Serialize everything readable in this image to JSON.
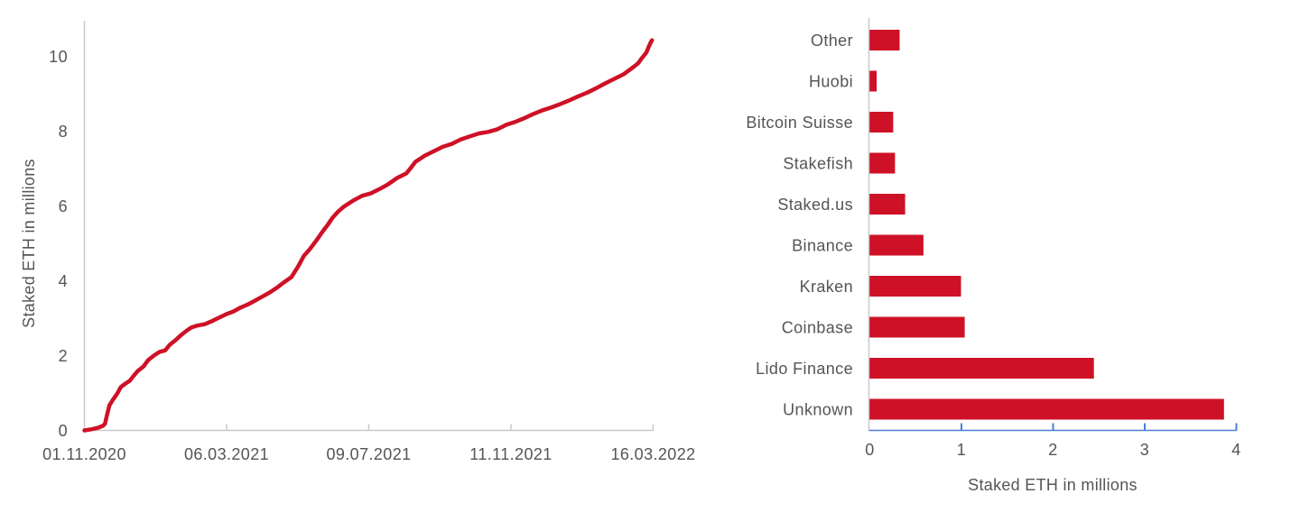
{
  "page": {
    "background": "#ffffff"
  },
  "colors": {
    "series_red": "#ce1126",
    "axis_gray": "#c9c9c9",
    "axis_blue": "#4a7ed9",
    "text_gray": "#555555"
  },
  "chart_data": [
    {
      "type": "line",
      "name": "staked-eth-over-time",
      "ylabel": "Staked ETH in millions",
      "xlabel": "",
      "x_tick_labels": [
        "01.11.2020",
        "06.03.2021",
        "09.07.2021",
        "11.11.2021",
        "16.03.2022"
      ],
      "x_tick_days": [
        0,
        125,
        250,
        375,
        500
      ],
      "x_range_days": [
        0,
        500
      ],
      "y_ticks": [
        0,
        2,
        4,
        6,
        8,
        10
      ],
      "ylim": [
        0,
        11
      ],
      "grid": false,
      "legend": "none",
      "line_color": "#ce1126",
      "series": [
        {
          "name": "Staked ETH (millions)",
          "points_format": "[day_offset_from_01.11.2020, staked_eth_millions]",
          "points": [
            [
              0,
              0
            ],
            [
              6,
              0.03
            ],
            [
              12,
              0.07
            ],
            [
              16,
              0.12
            ],
            [
              18,
              0.17
            ],
            [
              20,
              0.43
            ],
            [
              22,
              0.67
            ],
            [
              25,
              0.82
            ],
            [
              29,
              0.99
            ],
            [
              32,
              1.16
            ],
            [
              36,
              1.25
            ],
            [
              40,
              1.33
            ],
            [
              43,
              1.45
            ],
            [
              47,
              1.59
            ],
            [
              52,
              1.71
            ],
            [
              56,
              1.88
            ],
            [
              61,
              2.0
            ],
            [
              66,
              2.1
            ],
            [
              71,
              2.14
            ],
            [
              75,
              2.29
            ],
            [
              80,
              2.41
            ],
            [
              85,
              2.55
            ],
            [
              90,
              2.67
            ],
            [
              94,
              2.75
            ],
            [
              99,
              2.8
            ],
            [
              106,
              2.84
            ],
            [
              112,
              2.92
            ],
            [
              118,
              3.01
            ],
            [
              125,
              3.11
            ],
            [
              131,
              3.18
            ],
            [
              137,
              3.28
            ],
            [
              144,
              3.37
            ],
            [
              150,
              3.47
            ],
            [
              156,
              3.57
            ],
            [
              163,
              3.69
            ],
            [
              169,
              3.81
            ],
            [
              175,
              3.95
            ],
            [
              182,
              4.1
            ],
            [
              188,
              4.39
            ],
            [
              193,
              4.67
            ],
            [
              198,
              4.84
            ],
            [
              204,
              5.08
            ],
            [
              209,
              5.3
            ],
            [
              214,
              5.5
            ],
            [
              218,
              5.68
            ],
            [
              223,
              5.85
            ],
            [
              228,
              5.98
            ],
            [
              236,
              6.14
            ],
            [
              244,
              6.27
            ],
            [
              252,
              6.34
            ],
            [
              260,
              6.46
            ],
            [
              267,
              6.58
            ],
            [
              275,
              6.75
            ],
            [
              283,
              6.87
            ],
            [
              287,
              7.02
            ],
            [
              291,
              7.18
            ],
            [
              295,
              7.26
            ],
            [
              299,
              7.34
            ],
            [
              307,
              7.46
            ],
            [
              315,
              7.58
            ],
            [
              323,
              7.66
            ],
            [
              331,
              7.78
            ],
            [
              339,
              7.86
            ],
            [
              347,
              7.94
            ],
            [
              355,
              7.98
            ],
            [
              363,
              8.05
            ],
            [
              371,
              8.17
            ],
            [
              379,
              8.25
            ],
            [
              387,
              8.35
            ],
            [
              394,
              8.45
            ],
            [
              402,
              8.55
            ],
            [
              410,
              8.63
            ],
            [
              418,
              8.72
            ],
            [
              426,
              8.82
            ],
            [
              434,
              8.93
            ],
            [
              442,
              9.03
            ],
            [
              450,
              9.15
            ],
            [
              458,
              9.28
            ],
            [
              466,
              9.4
            ],
            [
              474,
              9.52
            ],
            [
              482,
              9.7
            ],
            [
              487,
              9.82
            ],
            [
              490,
              9.95
            ],
            [
              494,
              10.1
            ],
            [
              496,
              10.25
            ],
            [
              498,
              10.38
            ],
            [
              499,
              10.43
            ]
          ]
        }
      ]
    },
    {
      "type": "bar",
      "name": "staked-eth-by-provider",
      "orientation": "horizontal",
      "xlabel": "Staked ETH in millions",
      "categories": [
        "Other",
        "Huobi",
        "Bitcoin Suisse",
        "Stakefish",
        "Staked.us",
        "Binance",
        "Kraken",
        "Coinbase",
        "Lido Finance",
        "Unknown"
      ],
      "values": [
        0.33,
        0.08,
        0.26,
        0.28,
        0.39,
        0.59,
        1.0,
        1.04,
        2.45,
        3.87
      ],
      "x_ticks": [
        0,
        1,
        2,
        3,
        4
      ],
      "xlim": [
        0,
        4
      ],
      "grid": false,
      "legend": "none",
      "bar_color": "#ce1126"
    }
  ]
}
